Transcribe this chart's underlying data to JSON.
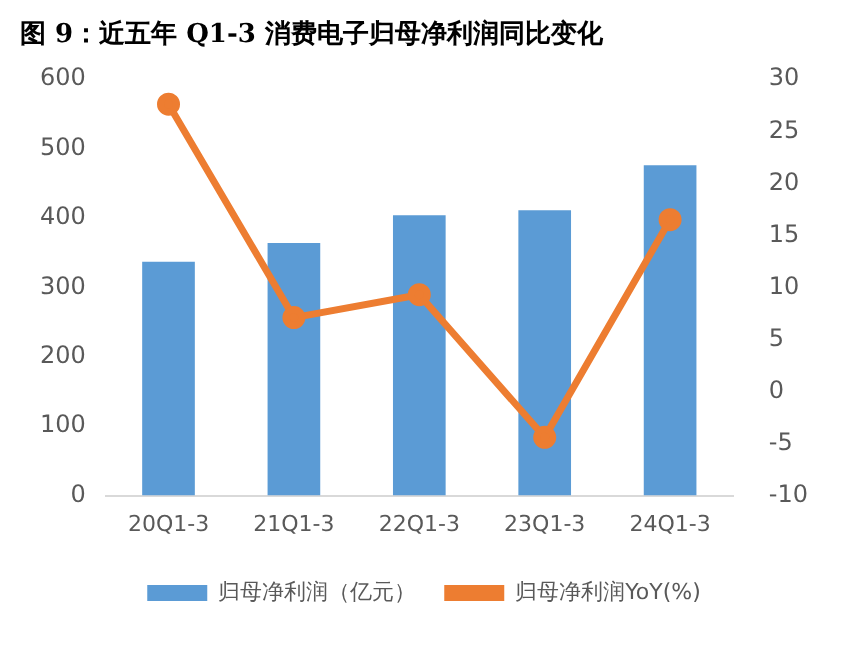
{
  "chart_data": {
    "type": "bar",
    "title": "图 9：近五年 Q1-3 消费电子归母净利润同比变化",
    "categories": [
      "20Q1-3",
      "21Q1-3",
      "22Q1-3",
      "23Q1-3",
      "24Q1-3"
    ],
    "series": [
      {
        "name": "归母净利润（亿元）",
        "color": "#5b9bd5",
        "values": [
          337,
          364,
          404,
          411,
          476
        ]
      },
      {
        "name": "归母净利润YoY(%)",
        "type": "line",
        "axis": "y2",
        "color": "#ed7d31",
        "values": [
          27.6,
          7.1,
          9.3,
          -4.4,
          16.5
        ]
      }
    ],
    "ylim": [
      0,
      600
    ],
    "yticks": [
      0,
      100,
      200,
      300,
      400,
      500,
      600
    ],
    "y2lim": [
      -10,
      30
    ],
    "y2ticks": [
      -10,
      -5,
      0,
      5,
      10,
      15,
      20,
      25,
      30
    ],
    "marker": "circle",
    "line_style": "solid",
    "grid": false,
    "legend": "bottom"
  }
}
